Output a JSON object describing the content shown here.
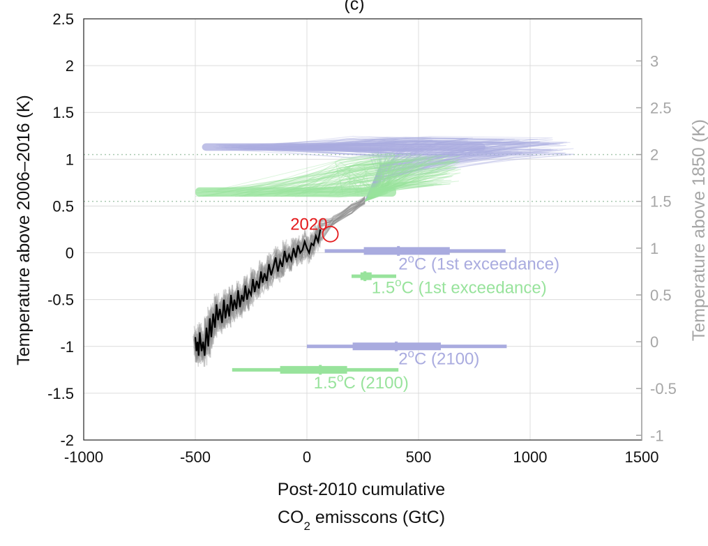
{
  "chart_data": {
    "type": "line",
    "title": "(c)",
    "xlabel_line1": "Post-2010 cumulative",
    "xlabel_line2_pre": "CO",
    "xlabel_line2_sub": "2",
    "xlabel_line2_post": " emisscons (GtC)",
    "ylabel": "Temperature above 2006–2016 (K)",
    "ylabel_right": "Temperature above 1850 (K)",
    "xlim": [
      -1000,
      1500
    ],
    "ylim": [
      -2,
      2.5
    ],
    "xticks": [
      -1000,
      -500,
      0,
      500,
      1000,
      1500
    ],
    "yticks": [
      -2,
      -1.5,
      -1,
      -0.5,
      0,
      0.5,
      1,
      1.5,
      2,
      2.5
    ],
    "right_axis_offset": 0.95,
    "right_ticks": [
      -1,
      -0.5,
      0,
      0.5,
      1,
      1.5,
      2,
      2.5,
      3
    ],
    "right_tick_labels": [
      "-1",
      "-0.5",
      "0",
      "0.5",
      "1",
      "1.5",
      "2",
      "2.5",
      "3"
    ],
    "grid": true,
    "reference_lines": [
      {
        "y": 1.05,
        "color": "#a8c8b0",
        "style": "dotted"
      },
      {
        "y": 0.55,
        "color": "#a8c8b0",
        "style": "dotted"
      }
    ],
    "colors": {
      "observed": "#000000",
      "historical_ensemble": "#8c8c8c",
      "two_degree": "#a9abdf",
      "one_point_five_degree": "#98e39c",
      "highlight": "#e41a1c"
    },
    "observed_series": {
      "x": [
        -500,
        -495,
        -490,
        -485,
        -480,
        -472,
        -465,
        -458,
        -450,
        -442,
        -435,
        -428,
        -420,
        -412,
        -405,
        -398,
        -390,
        -380,
        -372,
        -365,
        -356,
        -348,
        -340,
        -332,
        -325,
        -316,
        -308,
        -300,
        -292,
        -284,
        -276,
        -268,
        -260,
        -250,
        -242,
        -234,
        -225,
        -215,
        -206,
        -198,
        -190,
        -180,
        -170,
        -160,
        -150,
        -140,
        -130,
        -120,
        -110,
        -100,
        -90,
        -80,
        -70,
        -60,
        -50,
        -40,
        -30,
        -20,
        -10,
        0,
        10,
        20,
        30,
        40,
        50,
        60
      ],
      "y": [
        -0.9,
        -1.05,
        -0.95,
        -1.1,
        -0.85,
        -1.05,
        -0.95,
        -1.1,
        -0.8,
        -1.0,
        -0.7,
        -0.9,
        -0.65,
        -0.8,
        -0.55,
        -0.72,
        -0.6,
        -0.75,
        -0.5,
        -0.7,
        -0.55,
        -0.68,
        -0.45,
        -0.62,
        -0.5,
        -0.6,
        -0.4,
        -0.58,
        -0.45,
        -0.52,
        -0.35,
        -0.5,
        -0.4,
        -0.45,
        -0.28,
        -0.42,
        -0.3,
        -0.38,
        -0.2,
        -0.32,
        -0.22,
        -0.3,
        -0.12,
        -0.24,
        -0.15,
        -0.05,
        -0.2,
        -0.08,
        -0.15,
        0.02,
        -0.1,
        -0.02,
        -0.08,
        0.05,
        -0.05,
        0.08,
        0.0,
        0.03,
        0.12,
        0.05,
        0.0,
        0.1,
        0.08,
        0.18,
        0.12,
        0.25
      ]
    },
    "highlight_point": {
      "label": "2020",
      "x": 105,
      "y": 0.2
    },
    "range_bars": [
      {
        "label_pre": "2",
        "label_sup": "o",
        "label_post": "C (1st exceedance)",
        "color": "#a9abdf",
        "y": 0.02,
        "min": 80,
        "p25": 255,
        "median": 410,
        "p75": 640,
        "max": 890,
        "label_x": 410,
        "label_y": -0.18
      },
      {
        "label_pre": "1.5",
        "label_sup": "o",
        "label_post": "C (1st exceedance)",
        "color": "#98e39c",
        "y": -0.25,
        "min": 200,
        "p25": 240,
        "median": 260,
        "p75": 290,
        "max": 400,
        "label_x": 290,
        "label_y": -0.43
      },
      {
        "label_pre": "2",
        "label_sup": "o",
        "label_post": "C (2100)",
        "color": "#a9abdf",
        "y": -1.0,
        "min": 0,
        "p25": 205,
        "median": 400,
        "p75": 600,
        "max": 895,
        "label_x": 410,
        "label_y": -1.19
      },
      {
        "label_pre": "1.5",
        "label_sup": "o",
        "label_post": "C (2100)",
        "color": "#98e39c",
        "y": -1.25,
        "min": -335,
        "p25": -120,
        "median": 60,
        "p75": 180,
        "max": 410,
        "label_x": 30,
        "label_y": -1.45
      }
    ]
  }
}
